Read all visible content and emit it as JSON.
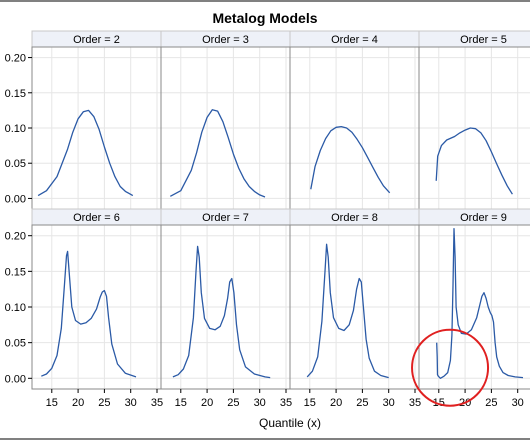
{
  "chart_data": {
    "type": "line",
    "title": "Metalog Models",
    "xlabel": "Quantile (x)",
    "ylabel": "",
    "xlim": [
      12,
      35
    ],
    "ylim": [
      -0.015,
      0.215
    ],
    "x_ticks": [
      15,
      20,
      25,
      30,
      35
    ],
    "y_ticks": [
      0.0,
      0.05,
      0.1,
      0.15,
      0.2
    ],
    "y_tick_labels": [
      "0.00",
      "0.05",
      "0.10",
      "0.15",
      "0.20"
    ],
    "grid": true,
    "line_color": "#2b5aa6",
    "panels": [
      {
        "label": "Order = 2",
        "x": [
          12.4,
          14,
          16,
          18,
          19,
          20,
          21,
          22,
          23,
          24,
          25,
          26,
          27,
          28,
          29,
          30.4
        ],
        "y": [
          0.004,
          0.011,
          0.031,
          0.07,
          0.094,
          0.113,
          0.123,
          0.125,
          0.116,
          0.098,
          0.073,
          0.05,
          0.031,
          0.017,
          0.01,
          0.004
        ]
      },
      {
        "label": "Order = 3",
        "x": [
          13,
          15,
          17,
          18,
          19,
          20,
          21,
          22,
          23,
          24,
          25,
          26,
          27,
          28,
          29,
          30,
          31
        ],
        "y": [
          0.003,
          0.011,
          0.04,
          0.065,
          0.094,
          0.115,
          0.126,
          0.124,
          0.109,
          0.087,
          0.063,
          0.043,
          0.028,
          0.017,
          0.01,
          0.005,
          0.002
        ]
      },
      {
        "label": "Order = 4",
        "x": [
          15.2,
          16,
          17,
          18,
          19,
          20,
          21,
          22,
          23,
          24,
          25,
          26,
          27,
          28,
          29,
          30.2
        ],
        "y": [
          0.013,
          0.045,
          0.068,
          0.085,
          0.096,
          0.101,
          0.102,
          0.1,
          0.094,
          0.084,
          0.072,
          0.058,
          0.044,
          0.03,
          0.018,
          0.008
        ]
      },
      {
        "label": "Order = 5",
        "x": [
          14.5,
          14.8,
          15.5,
          16.5,
          18,
          19,
          20,
          21,
          22,
          23,
          24,
          25,
          26,
          27,
          28,
          29
        ],
        "y": [
          0.025,
          0.06,
          0.075,
          0.083,
          0.088,
          0.093,
          0.097,
          0.1,
          0.099,
          0.093,
          0.082,
          0.066,
          0.049,
          0.033,
          0.018,
          0.006
        ]
      },
      {
        "label": "Order = 6",
        "x": [
          13,
          14,
          15,
          16,
          16.8,
          17.4,
          17.8,
          18,
          18.3,
          18.8,
          19.5,
          20.5,
          21.5,
          22.5,
          23.5,
          24.2,
          24.6,
          25,
          25.4,
          25.8,
          26.4,
          27.5,
          29,
          31
        ],
        "y": [
          0.003,
          0.006,
          0.014,
          0.032,
          0.07,
          0.13,
          0.172,
          0.178,
          0.15,
          0.1,
          0.081,
          0.076,
          0.078,
          0.084,
          0.097,
          0.114,
          0.121,
          0.123,
          0.115,
          0.085,
          0.048,
          0.02,
          0.007,
          0.002
        ]
      },
      {
        "label": "Order = 7",
        "x": [
          13.5,
          14.5,
          15.5,
          16.5,
          17.4,
          17.9,
          18.2,
          18.5,
          18.9,
          19.5,
          20.5,
          21.5,
          22.5,
          23.3,
          23.9,
          24.3,
          24.7,
          25.1,
          25.6,
          26.2,
          27.3,
          29,
          31,
          32
        ],
        "y": [
          0.002,
          0.005,
          0.013,
          0.032,
          0.085,
          0.15,
          0.185,
          0.17,
          0.12,
          0.084,
          0.07,
          0.068,
          0.073,
          0.088,
          0.112,
          0.135,
          0.14,
          0.12,
          0.075,
          0.04,
          0.016,
          0.006,
          0.002,
          0.001
        ]
      },
      {
        "label": "Order = 8",
        "x": [
          14.5,
          15.5,
          16.5,
          17.3,
          17.9,
          18.2,
          18.5,
          18.9,
          19.5,
          20.5,
          21.5,
          22.5,
          23.3,
          23.9,
          24.4,
          24.8,
          25.2,
          25.7,
          26.3,
          27.3,
          28.5,
          30
        ],
        "y": [
          0.002,
          0.01,
          0.03,
          0.08,
          0.15,
          0.188,
          0.17,
          0.12,
          0.085,
          0.07,
          0.067,
          0.075,
          0.095,
          0.125,
          0.14,
          0.135,
          0.1,
          0.055,
          0.028,
          0.01,
          0.004,
          0.001
        ]
      },
      {
        "label": "Order = 9",
        "x": [
          14.6,
          14.7,
          14.75,
          14.9,
          15.3,
          16,
          16.7,
          17.2,
          17.5,
          17.7,
          17.9,
          18.1,
          18.3,
          18.7,
          19.3,
          20.2,
          21.2,
          22.2,
          22.7,
          23.2,
          23.6,
          24,
          24.4,
          24.8,
          25.1,
          25.4,
          25.7,
          26,
          26.5,
          27.2,
          28.2,
          29.5,
          31
        ],
        "y": [
          0.05,
          0.03,
          0.005,
          0.003,
          0.0,
          0.003,
          0.008,
          0.025,
          0.06,
          0.13,
          0.21,
          0.17,
          0.1,
          0.075,
          0.063,
          0.062,
          0.068,
          0.085,
          0.1,
          0.115,
          0.12,
          0.112,
          0.1,
          0.092,
          0.088,
          0.079,
          0.05,
          0.03,
          0.017,
          0.008,
          0.004,
          0.002,
          0.001
        ]
      }
    ],
    "annotation": {
      "shape": "circle",
      "color": "#e02020",
      "panel": "Order = 9",
      "center_x": 16.0,
      "center_y": 0.005
    }
  }
}
